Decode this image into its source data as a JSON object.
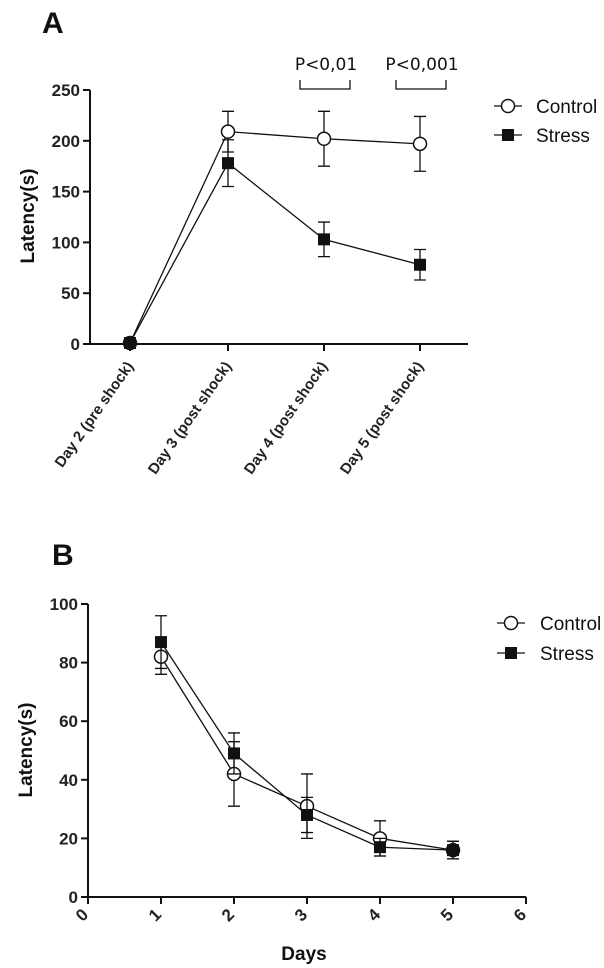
{
  "chart_data": [
    {
      "panel": "A",
      "type": "line",
      "ylabel": "Latency(s)",
      "ylim": [
        0,
        250
      ],
      "yticks": [
        0,
        50,
        100,
        150,
        200,
        250
      ],
      "categories": [
        "Day 2 (pre shock)",
        "Day 3 (post shock)",
        "Day 4 (post shock)",
        "Day 5 (post shock)"
      ],
      "series": [
        {
          "name": "Control",
          "marker": "open-circle",
          "values": [
            1,
            209,
            202,
            197
          ],
          "errors": [
            1,
            20,
            27,
            27
          ]
        },
        {
          "name": "Stress",
          "marker": "filled-square",
          "values": [
            1,
            178,
            103,
            78
          ],
          "errors": [
            1,
            23,
            17,
            15
          ]
        }
      ],
      "annotations": [
        {
          "text": "P<0,01",
          "category_index": 2
        },
        {
          "text": "P<0,001",
          "category_index": 3
        }
      ],
      "legend": "top-right",
      "grid": false
    },
    {
      "panel": "B",
      "type": "line",
      "xlabel": "Days",
      "ylabel": "Latency(s)",
      "xlim": [
        0,
        6
      ],
      "xticks": [
        0,
        1,
        2,
        3,
        4,
        5,
        6
      ],
      "ylim": [
        0,
        100
      ],
      "yticks": [
        0,
        20,
        40,
        60,
        80,
        100
      ],
      "x": [
        1,
        2,
        3,
        4,
        5
      ],
      "series": [
        {
          "name": "Control",
          "marker": "open-circle",
          "values": [
            82,
            42,
            31,
            20,
            16
          ],
          "errors": [
            6,
            11,
            11,
            6,
            3
          ]
        },
        {
          "name": "Stress",
          "marker": "filled-square",
          "values": [
            87,
            49,
            28,
            17,
            16
          ],
          "errors": [
            9,
            7,
            6,
            3,
            3
          ]
        }
      ],
      "legend": "top-right",
      "grid": false
    }
  ]
}
